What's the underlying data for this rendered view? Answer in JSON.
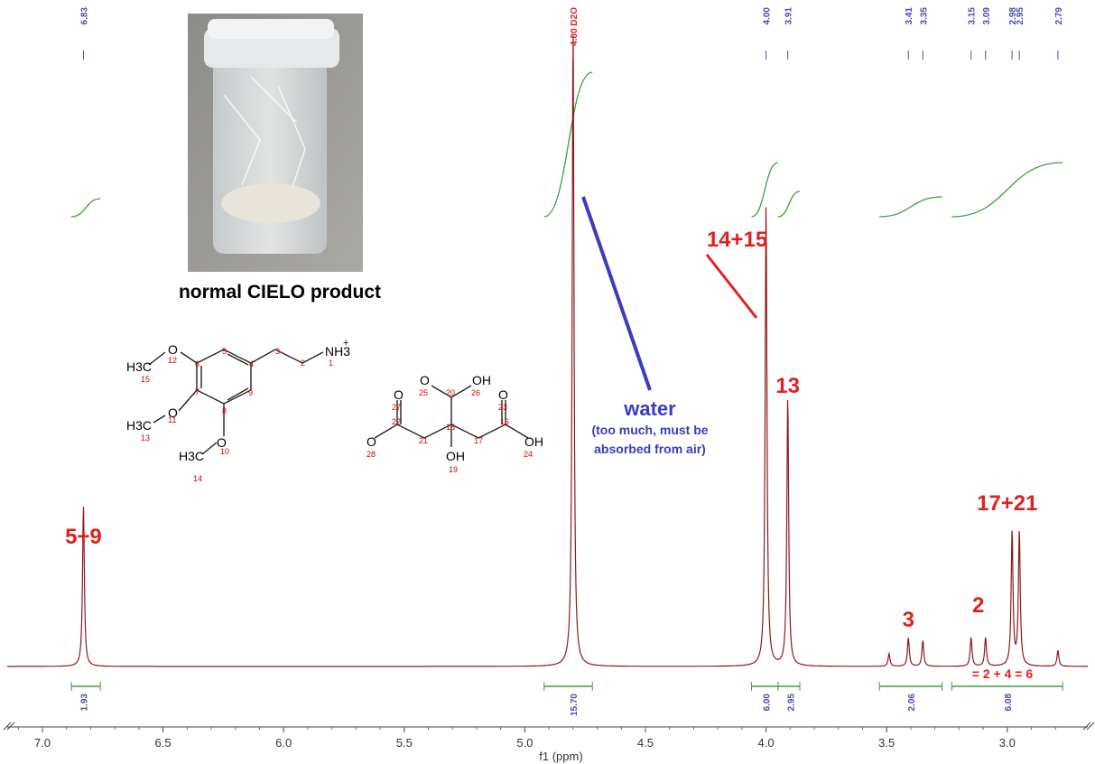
{
  "photo_caption": "normal CIELO product",
  "water_label": "water",
  "water_note": "(too much, must be\nabsorbed from air)",
  "colors": {
    "spectrum": "#8b1a1a",
    "peak_tick": "#4a4ab0",
    "integral": "#3aa03a",
    "annotation": "#e02020",
    "water": "#3b3bbf"
  },
  "structure_phenethylamine": {
    "atoms": [
      "NH3",
      "+",
      "1",
      "2",
      "3",
      "4",
      "5",
      "6",
      "7",
      "8",
      "9",
      "10",
      "11",
      "12",
      "13",
      "14",
      "15",
      "O",
      "O",
      "O",
      "H3C",
      "H3C",
      "H3C"
    ]
  },
  "structure_citrate": {
    "atoms": [
      "O",
      "O",
      "OH",
      "O",
      "OH",
      "OH",
      "O",
      "16",
      "17",
      "18",
      "19",
      "20",
      "21",
      "22",
      "23",
      "24",
      "25",
      "26",
      "27",
      "28"
    ]
  },
  "chart_data": {
    "type": "line",
    "xlabel": "f1 (ppm)",
    "xlim": [
      7.2,
      2.7
    ],
    "x_ticks": [
      "7.0",
      "6.5",
      "6.0",
      "5.5",
      "5.0",
      "4.5",
      "4.0",
      "3.5",
      "3.0"
    ],
    "peak_labels": [
      "6.83",
      "4.80 D2O",
      "4.00",
      "3.91",
      "3.41",
      "3.35",
      "3.15",
      "3.09",
      "2.98",
      "2.95",
      "2.79"
    ],
    "peaks": [
      {
        "ppm": 6.83,
        "height": 0.25
      },
      {
        "ppm": 4.8,
        "height": 1.0
      },
      {
        "ppm": 4.0,
        "height": 0.72
      },
      {
        "ppm": 3.91,
        "height": 0.42
      },
      {
        "ppm": 3.49,
        "height": 0.02
      },
      {
        "ppm": 3.41,
        "height": 0.045
      },
      {
        "ppm": 3.35,
        "height": 0.04
      },
      {
        "ppm": 3.15,
        "height": 0.045
      },
      {
        "ppm": 3.09,
        "height": 0.045
      },
      {
        "ppm": 2.98,
        "height": 0.21
      },
      {
        "ppm": 2.95,
        "height": 0.21
      },
      {
        "ppm": 2.79,
        "height": 0.025
      }
    ],
    "integrals": [
      {
        "from": 6.88,
        "to": 6.76,
        "value": "1.93",
        "label_ppm": 6.83
      },
      {
        "from": 4.92,
        "to": 4.72,
        "value": "15.70",
        "label_ppm": 4.8
      },
      {
        "from": 4.06,
        "to": 3.95,
        "value": "6.00",
        "label_ppm": 4.0
      },
      {
        "from": 3.95,
        "to": 3.86,
        "value": "2.95",
        "label_ppm": 3.9
      },
      {
        "from": 3.53,
        "to": 3.27,
        "value": "2.06",
        "label_ppm": 3.4
      },
      {
        "from": 3.23,
        "to": 2.77,
        "value": "6.08",
        "label_ppm": 3.0
      }
    ],
    "annotations": [
      {
        "text": "5+9",
        "ppm": 6.83
      },
      {
        "text": "14+15",
        "ppm": 4.12
      },
      {
        "text": "13",
        "ppm": 3.91
      },
      {
        "text": "3",
        "ppm": 3.41
      },
      {
        "text": "2",
        "ppm": 3.12
      },
      {
        "text": "17+21",
        "ppm": 3.0
      },
      {
        "text": "= 2 + 4 = 6",
        "ppm": 3.02
      }
    ]
  }
}
